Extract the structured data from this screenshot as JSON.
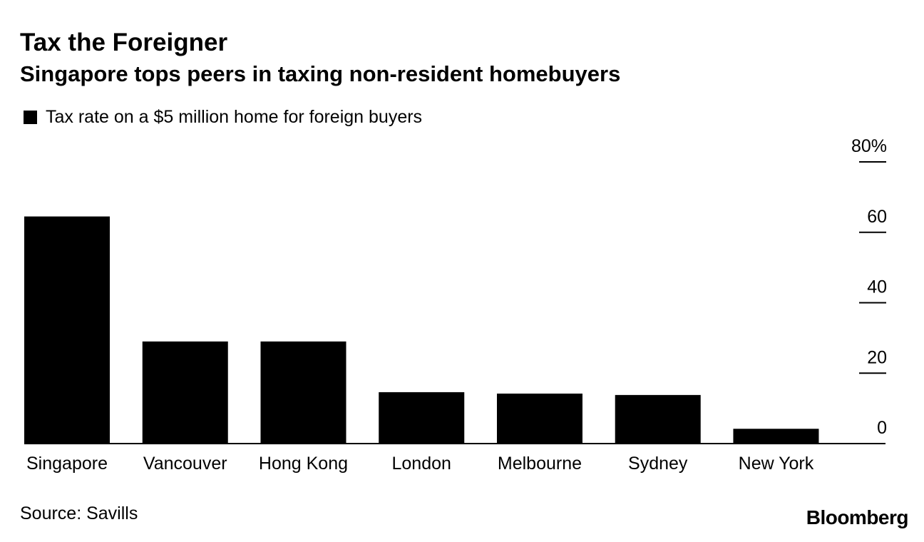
{
  "chart_data": {
    "type": "bar",
    "title": "Tax the Foreigner",
    "subtitle": "Singapore tops peers in taxing non-resident homebuyers",
    "legend": [
      "Tax rate on a $5 million home for foreign buyers"
    ],
    "legend_position": "top-left",
    "categories": [
      "Singapore",
      "Vancouver",
      "Hong Kong",
      "London",
      "Melbourne",
      "Sydney",
      "New York"
    ],
    "series": [
      {
        "name": "Tax rate on a $5 million home for foreign buyers",
        "values": [
          64.5,
          29,
          29,
          14.6,
          14.2,
          13.8,
          4.2
        ]
      }
    ],
    "ylim": [
      0,
      80
    ],
    "yticks": [
      0,
      20,
      40,
      60,
      80
    ],
    "ytick_labels": [
      "0",
      "20",
      "40",
      "60",
      "80%"
    ],
    "y_axis_side": "right",
    "grid": false,
    "bar_color": "#000000"
  },
  "footer": {
    "source": "Source: Savills",
    "brand": "Bloomberg"
  }
}
